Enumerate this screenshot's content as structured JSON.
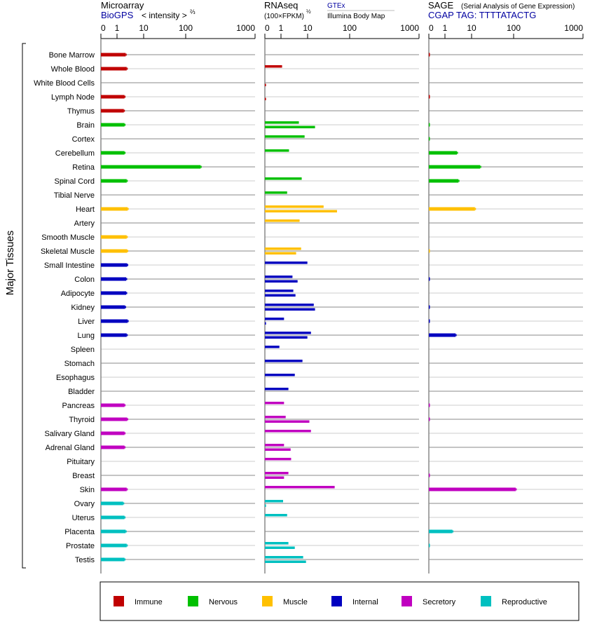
{
  "chart_data": {
    "type": "bar",
    "orientation": "horizontal",
    "axis_label_y": "Major Tissues",
    "scale_ticks": [
      0,
      1,
      10,
      100,
      1000
    ],
    "colors": {
      "Immune": "#c00000",
      "Nervous": "#00c000",
      "Muscle": "#ffc000",
      "Internal": "#0000c0",
      "Secretory": "#c000c0",
      "Reproductive": "#00c0c0"
    },
    "panels": {
      "microarray": {
        "title": "Microarray",
        "source": "BioGPS",
        "unit": "< intensity >",
        "unit_exp": "⅔"
      },
      "rnaseq": {
        "title": "RNAseq",
        "unit": "(100×FPKM)",
        "unit_exp": "½",
        "source_top": "GTEx",
        "source_bottom": "Illumina Body Map"
      },
      "sage": {
        "title": "SAGE",
        "subtitle": "(Serial Analysis of Gene Expression)",
        "tag": "CGAP TAG: TTTTATACTG"
      }
    },
    "legend": [
      "Immune",
      "Nervous",
      "Muscle",
      "Internal",
      "Secretory",
      "Reproductive"
    ],
    "tissues": [
      {
        "name": "Bone Marrow",
        "group": "Immune",
        "microarray": 2.1,
        "gtex": null,
        "illumina": null,
        "sage": 0.04
      },
      {
        "name": "Whole Blood",
        "group": "Immune",
        "microarray": 2.3,
        "gtex": 1.1,
        "illumina": null,
        "sage": null
      },
      {
        "name": "White Blood Cells",
        "group": "Immune",
        "microarray": null,
        "gtex": null,
        "illumina": 0.07,
        "sage": null
      },
      {
        "name": "Lymph Node",
        "group": "Immune",
        "microarray": 1.9,
        "gtex": null,
        "illumina": 0.07,
        "sage": 0.04
      },
      {
        "name": "Thymus",
        "group": "Immune",
        "microarray": 1.8,
        "gtex": null,
        "illumina": null,
        "sage": null
      },
      {
        "name": "Brain",
        "group": "Nervous",
        "microarray": 1.9,
        "gtex": 4.7,
        "illumina": 15,
        "sage": 0.04
      },
      {
        "name": "Cortex",
        "group": "Nervous",
        "microarray": null,
        "gtex": 7.7,
        "illumina": null,
        "sage": 0.04
      },
      {
        "name": "Cerebellum",
        "group": "Nervous",
        "microarray": 1.9,
        "gtex": 2.0,
        "illumina": null,
        "sage": 2.8
      },
      {
        "name": "Retina",
        "group": "Nervous",
        "microarray": 164,
        "gtex": null,
        "illumina": null,
        "sage": 16
      },
      {
        "name": "Spinal Cord",
        "group": "Nervous",
        "microarray": 2.3,
        "gtex": 6.0,
        "illumina": null,
        "sage": 3.2
      },
      {
        "name": "Tibial Nerve",
        "group": "Nervous",
        "microarray": null,
        "gtex": 1.7,
        "illumina": null,
        "sage": null
      },
      {
        "name": "Heart",
        "group": "Muscle",
        "microarray": 2.5,
        "gtex": 24,
        "illumina": 50,
        "sage": 12
      },
      {
        "name": "Artery",
        "group": "Muscle",
        "microarray": null,
        "gtex": 5.0,
        "illumina": null,
        "sage": null
      },
      {
        "name": "Smooth Muscle",
        "group": "Muscle",
        "microarray": 2.3,
        "gtex": null,
        "illumina": null,
        "sage": null
      },
      {
        "name": "Skeletal Muscle",
        "group": "Muscle",
        "microarray": 2.4,
        "gtex": 5.7,
        "illumina": 3.7,
        "sage": 0.04
      },
      {
        "name": "Small Intestine",
        "group": "Internal",
        "microarray": 2.4,
        "gtex": 9.8,
        "illumina": null,
        "sage": null
      },
      {
        "name": "Colon",
        "group": "Internal",
        "microarray": 2.2,
        "gtex": 2.7,
        "illumina": 4.2,
        "sage": 0.04
      },
      {
        "name": "Adipocyte",
        "group": "Internal",
        "microarray": 2.2,
        "gtex": 2.9,
        "illumina": 3.5,
        "sage": null
      },
      {
        "name": "Kidney",
        "group": "Internal",
        "microarray": 2.0,
        "gtex": 14,
        "illumina": 15,
        "sage": 0.04
      },
      {
        "name": "Liver",
        "group": "Internal",
        "microarray": 2.5,
        "gtex": 1.3,
        "illumina": 0.07,
        "sage": 0.04
      },
      {
        "name": "Lung",
        "group": "Internal",
        "microarray": 2.3,
        "gtex": 12,
        "illumina": 9.8,
        "sage": 2.5
      },
      {
        "name": "Spleen",
        "group": "Internal",
        "microarray": null,
        "gtex": 0.9,
        "illumina": null,
        "sage": null
      },
      {
        "name": "Stomach",
        "group": "Internal",
        "microarray": null,
        "gtex": 6.4,
        "illumina": null,
        "sage": null
      },
      {
        "name": "Esophagus",
        "group": "Internal",
        "microarray": null,
        "gtex": 3.3,
        "illumina": null,
        "sage": null
      },
      {
        "name": "Bladder",
        "group": "Internal",
        "microarray": null,
        "gtex": 1.9,
        "illumina": null,
        "sage": null
      },
      {
        "name": "Pancreas",
        "group": "Secretory",
        "microarray": 1.9,
        "gtex": 1.3,
        "illumina": null,
        "sage": 0.04
      },
      {
        "name": "Thyroid",
        "group": "Secretory",
        "microarray": 2.4,
        "gtex": 1.5,
        "illumina": 11,
        "sage": 0.04
      },
      {
        "name": "Salivary Gland",
        "group": "Secretory",
        "microarray": 1.9,
        "gtex": 12,
        "illumina": null,
        "sage": null
      },
      {
        "name": "Adrenal Gland",
        "group": "Secretory",
        "microarray": 1.9,
        "gtex": 1.3,
        "illumina": 2.3,
        "sage": null
      },
      {
        "name": "Pituitary",
        "group": "Secretory",
        "microarray": null,
        "gtex": 2.4,
        "illumina": null,
        "sage": null
      },
      {
        "name": "Breast",
        "group": "Secretory",
        "microarray": null,
        "gtex": 1.9,
        "illumina": 1.3,
        "sage": 0.04
      },
      {
        "name": "Skin",
        "group": "Secretory",
        "microarray": 2.3,
        "gtex": 44,
        "illumina": null,
        "sage": 107
      },
      {
        "name": "Ovary",
        "group": "Reproductive",
        "microarray": 1.7,
        "gtex": 1.2,
        "illumina": 0.07,
        "sage": null
      },
      {
        "name": "Uterus",
        "group": "Reproductive",
        "microarray": 1.9,
        "gtex": 1.7,
        "illumina": null,
        "sage": null
      },
      {
        "name": "Placenta",
        "group": "Reproductive",
        "microarray": 2.1,
        "gtex": null,
        "illumina": null,
        "sage": 1.9
      },
      {
        "name": "Prostate",
        "group": "Reproductive",
        "microarray": 2.3,
        "gtex": 1.9,
        "illumina": 3.3,
        "sage": 0.04
      },
      {
        "name": "Testis",
        "group": "Reproductive",
        "microarray": 1.9,
        "gtex": 6.8,
        "illumina": 8.7,
        "sage": null
      }
    ]
  }
}
